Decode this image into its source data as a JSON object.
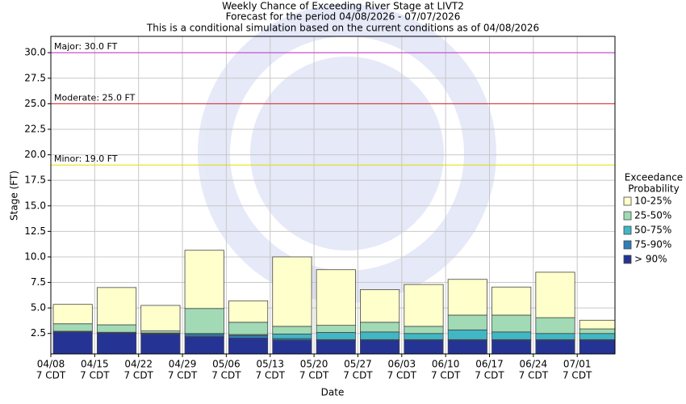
{
  "chart_data": {
    "type": "stacked-bar",
    "title": [
      "Weekly Chance of Exceeding River Stage at LIVT2",
      "Forecast for the period 04/08/2026 - 07/07/2026",
      "This is a conditional simulation based on the current conditions as of 04/08/2026"
    ],
    "x_label": "Date",
    "y_label": "Stage (FT)",
    "legend_title": [
      "Exceedance",
      "Probability"
    ],
    "legend_position": "right",
    "categories": [
      "04/08",
      "04/15",
      "04/22",
      "04/29",
      "05/06",
      "05/13",
      "05/20",
      "05/27",
      "06/03",
      "06/10",
      "06/17",
      "06/24",
      "07/01"
    ],
    "x_sublabel": "7 CDT",
    "series": [
      {
        "name": "> 90%",
        "color": "#253494",
        "values": [
          2.65,
          2.55,
          2.45,
          2.2,
          2.05,
          1.85,
          1.85,
          1.85,
          1.85,
          1.85,
          1.85,
          1.85,
          1.85
        ]
      },
      {
        "name": "75-90%",
        "color": "#2c7fb8",
        "values": [
          0.05,
          0.05,
          0.05,
          0.2,
          0.25,
          0.15,
          0.05,
          0.05,
          0.05,
          0.05,
          0.05,
          0.05,
          0.05
        ]
      },
      {
        "name": "50-75%",
        "color": "#41b6c4",
        "values": [
          0.02,
          0.02,
          0.05,
          0.1,
          0.1,
          0.45,
          0.7,
          0.75,
          0.6,
          0.95,
          0.75,
          0.6,
          0.6
        ]
      },
      {
        "name": "25-50%",
        "color": "#a1dab4",
        "values": [
          0.73,
          0.73,
          0.2,
          2.45,
          1.2,
          0.75,
          0.7,
          0.95,
          0.7,
          1.45,
          1.65,
          1.55,
          0.45
        ]
      },
      {
        "name": "10-25%",
        "color": "#ffffcc",
        "values": [
          1.9,
          3.65,
          2.5,
          5.7,
          2.1,
          6.8,
          5.45,
          3.2,
          4.1,
          3.5,
          2.75,
          4.45,
          0.85
        ]
      }
    ],
    "thresholds": [
      {
        "label": "Major: 30.0 FT",
        "value": 30,
        "color": "#cc33cc"
      },
      {
        "label": "Moderate: 25.0 FT",
        "value": 25,
        "color": "#dd2222"
      },
      {
        "label": "Minor: 19.0 FT",
        "value": 19,
        "color": "#e0e000"
      }
    ],
    "ylim": [
      0.5,
      31.6
    ],
    "yticks": [
      2.5,
      {
        "value": 5,
        "label": "5.0"
      },
      7.5,
      {
        "value": 10,
        "label": "10.0"
      },
      12.5,
      {
        "value": 15,
        "label": "15.0"
      },
      17.5,
      {
        "value": 20,
        "label": "20.0"
      },
      22.5,
      {
        "value": 25,
        "label": "25.0"
      },
      27.5,
      {
        "value": 30,
        "label": "30.0"
      }
    ],
    "grid": true
  }
}
